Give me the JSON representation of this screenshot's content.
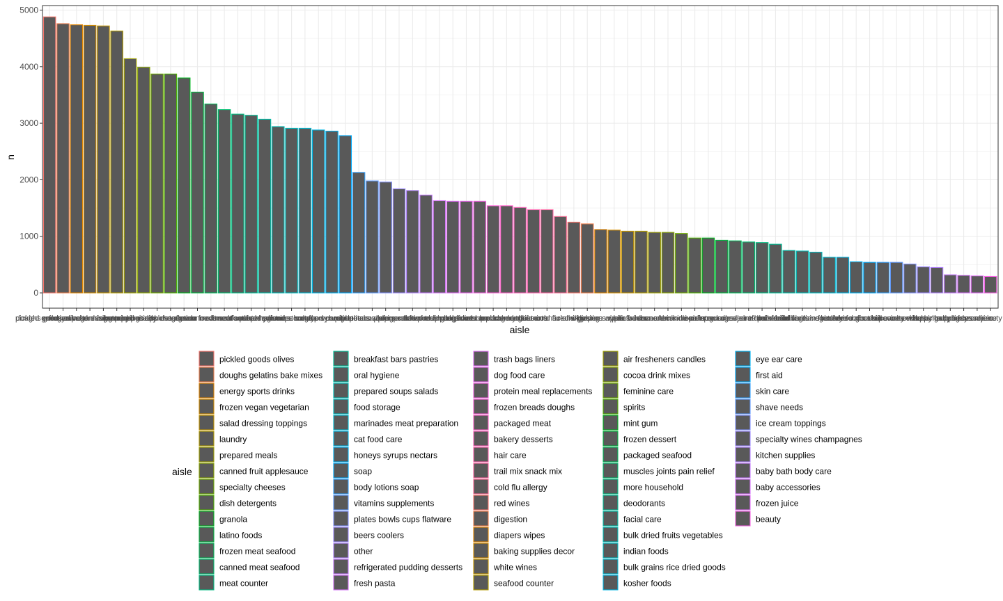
{
  "chart_data": {
    "type": "bar",
    "xlabel": "aisle",
    "ylabel": "n",
    "ylim": [
      0,
      5000
    ],
    "yticks": [
      "0",
      "1000",
      "2000",
      "3000",
      "4000",
      "5000"
    ],
    "grid": true,
    "bar_fill": "#595959",
    "legend_title": "aisle",
    "legend_position": "bottom",
    "categories": [
      "pickled goods olives",
      "doughs gelatins bake mixes",
      "energy sports drinks",
      "frozen vegan vegetarian",
      "salad dressing toppings",
      "laundry",
      "prepared meals",
      "canned fruit applesauce",
      "specialty cheeses",
      "dish detergents",
      "granola",
      "latino foods",
      "frozen meat seafood",
      "canned meat seafood",
      "meat counter",
      "breakfast bars pastries",
      "oral hygiene",
      "prepared soups salads",
      "food storage",
      "marinades meat preparation",
      "cat food care",
      "honeys syrups nectars",
      "soap",
      "body lotions soap",
      "vitamins supplements",
      "plates bowls cups flatware",
      "beers coolers",
      "other",
      "refrigerated pudding desserts",
      "fresh pasta",
      "trash bags liners",
      "dog food care",
      "protein meal replacements",
      "frozen breads doughs",
      "packaged meat",
      "bakery desserts",
      "hair care",
      "trail mix snack mix",
      "cold flu allergy",
      "red wines",
      "digestion",
      "diapers wipes",
      "baking supplies decor",
      "white wines",
      "seafood counter",
      "air fresheners candles",
      "cocoa drink mixes",
      "feminine care",
      "spirits",
      "mint gum",
      "frozen dessert",
      "packaged seafood",
      "muscles joints pain relief",
      "more household",
      "deodorants",
      "facial care",
      "bulk dried fruits vegetables",
      "indian foods",
      "bulk grains rice dried goods",
      "kosher foods",
      "eye ear care",
      "first aid",
      "skin care",
      "shave needs",
      "ice cream toppings",
      "specialty wines champagnes",
      "kitchen supplies",
      "baby bath body care",
      "baby accessories",
      "frozen juice",
      "beauty"
    ],
    "values": [
      4880,
      4760,
      4740,
      4730,
      4720,
      4630,
      4140,
      3990,
      3870,
      3870,
      3800,
      3550,
      3340,
      3240,
      3160,
      3140,
      3070,
      2940,
      2910,
      2910,
      2880,
      2860,
      2780,
      2130,
      1980,
      1960,
      1840,
      1810,
      1730,
      1630,
      1620,
      1620,
      1620,
      1540,
      1540,
      1510,
      1470,
      1470,
      1350,
      1250,
      1220,
      1120,
      1110,
      1090,
      1090,
      1070,
      1070,
      1050,
      970,
      970,
      930,
      920,
      900,
      890,
      860,
      750,
      740,
      720,
      630,
      630,
      550,
      540,
      540,
      540,
      510,
      460,
      450,
      320,
      310,
      300,
      290
    ],
    "outline_colors": [
      "#F8766D",
      "#F07F4C",
      "#E58700",
      "#D89000",
      "#C99800",
      "#B79F00",
      "#A3A500",
      "#8EAB00",
      "#72B000",
      "#4FB400",
      "#00B81F",
      "#00BA42",
      "#00BC5C",
      "#00BE71",
      "#00C085",
      "#00C098",
      "#00C1AA",
      "#00C0BB",
      "#00BFC4",
      "#00BCD5",
      "#00B8E7",
      "#00B2F3",
      "#00ABFD",
      "#35A2FF",
      "#619CFF",
      "#8494FF",
      "#9F8CFF",
      "#B385FF",
      "#C77CFF",
      "#D573F8",
      "#E26EF7",
      "#EC69EF",
      "#F564E3",
      "#FB61D7",
      "#FD61C8",
      "#FF62BC",
      "#FF64B0",
      "#FF66A3",
      "#FC6A95",
      "#F8766D",
      "#F07F4C",
      "#E58700",
      "#D89000",
      "#C99800",
      "#B79F00",
      "#A3A500",
      "#8EAB00",
      "#72B000",
      "#4FB400",
      "#00B81F",
      "#00BA42",
      "#00BC5C",
      "#00BE71",
      "#00C085",
      "#00C098",
      "#00C1AA",
      "#00C0BB",
      "#00BFC4",
      "#00BCD5",
      "#00B8E7",
      "#00B2F3",
      "#00ABFD",
      "#35A2FF",
      "#619CFF",
      "#8494FF",
      "#9F8CFF",
      "#B385FF",
      "#C77CFF",
      "#D573F8",
      "#E26EF7",
      "#F564E3"
    ]
  }
}
